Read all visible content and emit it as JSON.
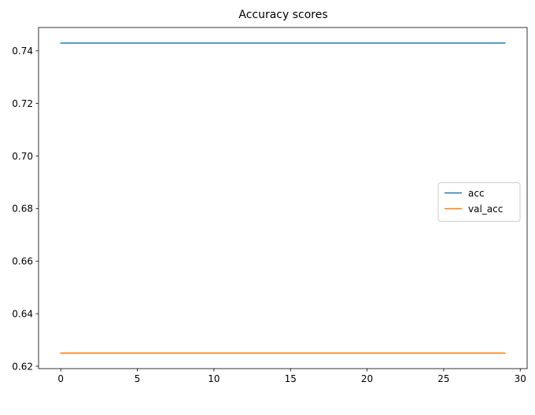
{
  "chart_data": {
    "type": "line",
    "title": "Accuracy scores",
    "xlabel": "",
    "ylabel": "",
    "x": [
      0,
      1,
      2,
      3,
      4,
      5,
      6,
      7,
      8,
      9,
      10,
      11,
      12,
      13,
      14,
      15,
      16,
      17,
      18,
      19,
      20,
      21,
      22,
      23,
      24,
      25,
      26,
      27,
      28,
      29
    ],
    "series": [
      {
        "name": "acc",
        "color": "#1f77b4",
        "values": [
          0.743,
          0.743,
          0.743,
          0.743,
          0.743,
          0.743,
          0.743,
          0.743,
          0.743,
          0.743,
          0.743,
          0.743,
          0.743,
          0.743,
          0.743,
          0.743,
          0.743,
          0.743,
          0.743,
          0.743,
          0.743,
          0.743,
          0.743,
          0.743,
          0.743,
          0.743,
          0.743,
          0.743,
          0.743,
          0.743
        ]
      },
      {
        "name": "val_acc",
        "color": "#ff7f0e",
        "values": [
          0.625,
          0.625,
          0.625,
          0.625,
          0.625,
          0.625,
          0.625,
          0.625,
          0.625,
          0.625,
          0.625,
          0.625,
          0.625,
          0.625,
          0.625,
          0.625,
          0.625,
          0.625,
          0.625,
          0.625,
          0.625,
          0.625,
          0.625,
          0.625,
          0.625,
          0.625,
          0.625,
          0.625,
          0.625,
          0.625
        ]
      }
    ],
    "xlim": [
      -1.45,
      30.45
    ],
    "ylim": [
      0.61909,
      0.7489
    ],
    "xticks": [
      0,
      5,
      10,
      15,
      20,
      25,
      30
    ],
    "xtick_labels": [
      "0",
      "5",
      "10",
      "15",
      "20",
      "25",
      "30"
    ],
    "yticks": [
      0.62,
      0.64,
      0.66,
      0.68,
      0.7,
      0.72,
      0.74
    ],
    "ytick_labels": [
      "0.62",
      "0.64",
      "0.66",
      "0.68",
      "0.70",
      "0.72",
      "0.74"
    ],
    "grid": false,
    "legend_position": "center-right"
  }
}
